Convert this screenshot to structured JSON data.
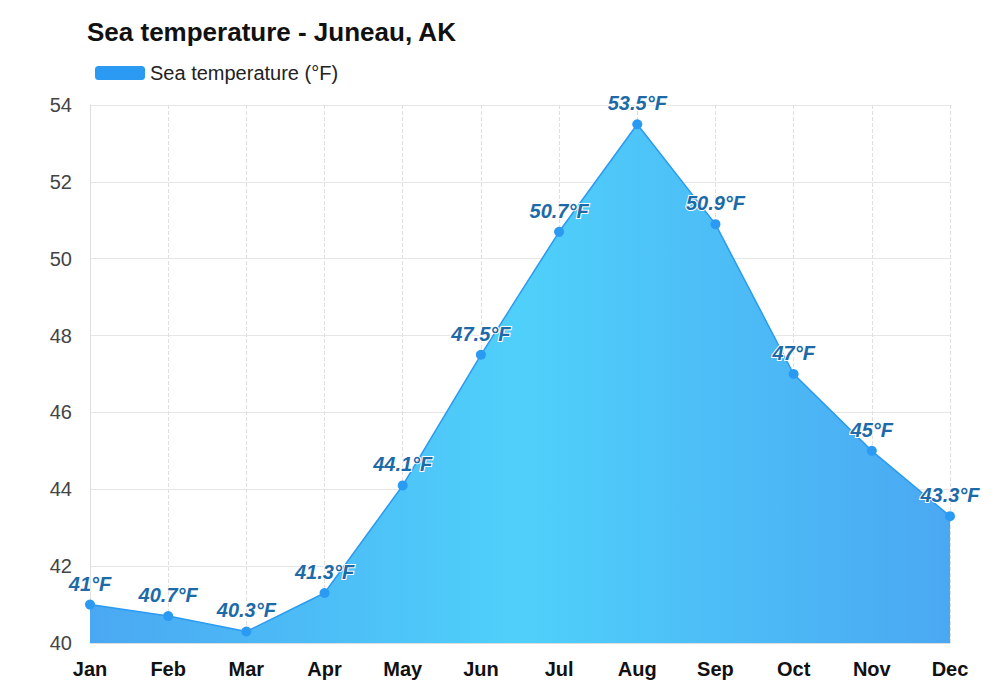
{
  "chart_data": {
    "type": "area",
    "title": "Sea temperature - Juneau, AK",
    "categories": [
      "Jan",
      "Feb",
      "Mar",
      "Apr",
      "May",
      "Jun",
      "Jul",
      "Aug",
      "Sep",
      "Oct",
      "Nov",
      "Dec"
    ],
    "series": [
      {
        "name": "Sea temperature (°F)",
        "color": "#2b9af3",
        "marker": "circle",
        "values": [
          41,
          40.7,
          40.3,
          41.3,
          44.1,
          47.5,
          50.7,
          53.5,
          50.9,
          47,
          45,
          43.3
        ],
        "value_labels": [
          "41°F",
          "40.7°F",
          "40.3°F",
          "41.3°F",
          "44.1°F",
          "47.5°F",
          "50.7°F",
          "53.5°F",
          "50.9°F",
          "47°F",
          "45°F",
          "43.3°F"
        ]
      }
    ],
    "ylim": [
      40,
      54
    ],
    "yticks": [
      40,
      42,
      44,
      46,
      48,
      50,
      52,
      54
    ],
    "grid": true,
    "legend": "top-left",
    "data_labels": true
  }
}
